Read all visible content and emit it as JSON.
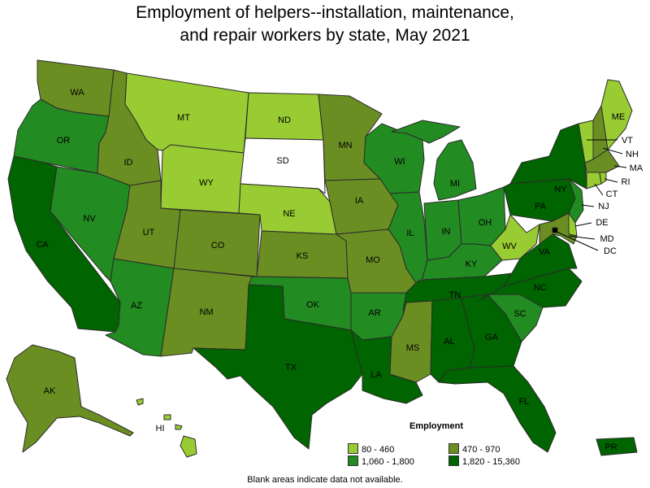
{
  "title_line1": "Employment of helpers--installation, maintenance,",
  "title_line2": "and repair workers by state, May 2021",
  "legend": {
    "title": "Employment",
    "items": [
      {
        "range": "80 - 460",
        "color": "#99cc33"
      },
      {
        "range": "470 - 970",
        "color": "#6b8e23"
      },
      {
        "range": "1,060 - 1,800",
        "color": "#228b22"
      },
      {
        "range": "1,820 - 15,360",
        "color": "#006400"
      }
    ]
  },
  "no_data_color": "#ffffff",
  "footnote": "Blank areas indicate data not available.",
  "states": [
    {
      "abbr": "WA",
      "bin": 1
    },
    {
      "abbr": "OR",
      "bin": 2
    },
    {
      "abbr": "CA",
      "bin": 3
    },
    {
      "abbr": "ID",
      "bin": 1
    },
    {
      "abbr": "NV",
      "bin": 2
    },
    {
      "abbr": "MT",
      "bin": 0
    },
    {
      "abbr": "WY",
      "bin": 0
    },
    {
      "abbr": "UT",
      "bin": 1
    },
    {
      "abbr": "AZ",
      "bin": 2
    },
    {
      "abbr": "CO",
      "bin": 1
    },
    {
      "abbr": "NM",
      "bin": 1
    },
    {
      "abbr": "ND",
      "bin": 0
    },
    {
      "abbr": "SD",
      "bin": null
    },
    {
      "abbr": "NE",
      "bin": 0
    },
    {
      "abbr": "KS",
      "bin": 1
    },
    {
      "abbr": "OK",
      "bin": 2
    },
    {
      "abbr": "TX",
      "bin": 3
    },
    {
      "abbr": "MN",
      "bin": 1
    },
    {
      "abbr": "IA",
      "bin": 1
    },
    {
      "abbr": "MO",
      "bin": 1
    },
    {
      "abbr": "AR",
      "bin": 2
    },
    {
      "abbr": "LA",
      "bin": 3
    },
    {
      "abbr": "WI",
      "bin": 2
    },
    {
      "abbr": "IL",
      "bin": 2
    },
    {
      "abbr": "MI",
      "bin": 2
    },
    {
      "abbr": "IN",
      "bin": 2
    },
    {
      "abbr": "OH",
      "bin": 2
    },
    {
      "abbr": "KY",
      "bin": 2
    },
    {
      "abbr": "TN",
      "bin": 3
    },
    {
      "abbr": "MS",
      "bin": 1
    },
    {
      "abbr": "AL",
      "bin": 3
    },
    {
      "abbr": "GA",
      "bin": 3
    },
    {
      "abbr": "FL",
      "bin": 3
    },
    {
      "abbr": "SC",
      "bin": 2
    },
    {
      "abbr": "NC",
      "bin": 3
    },
    {
      "abbr": "VA",
      "bin": 3
    },
    {
      "abbr": "WV",
      "bin": 0
    },
    {
      "abbr": "PA",
      "bin": 3
    },
    {
      "abbr": "NY",
      "bin": 3
    },
    {
      "abbr": "ME",
      "bin": 0
    },
    {
      "abbr": "VT",
      "bin": 0
    },
    {
      "abbr": "NH",
      "bin": 1
    },
    {
      "abbr": "MA",
      "bin": 1
    },
    {
      "abbr": "RI",
      "bin": 0
    },
    {
      "abbr": "CT",
      "bin": 0
    },
    {
      "abbr": "NJ",
      "bin": 2
    },
    {
      "abbr": "DE",
      "bin": 0
    },
    {
      "abbr": "MD",
      "bin": 1
    },
    {
      "abbr": "DC",
      "bin": 3
    },
    {
      "abbr": "AK",
      "bin": 1
    },
    {
      "abbr": "HI",
      "bin": 0
    },
    {
      "abbr": "PR",
      "bin": 3
    }
  ]
}
